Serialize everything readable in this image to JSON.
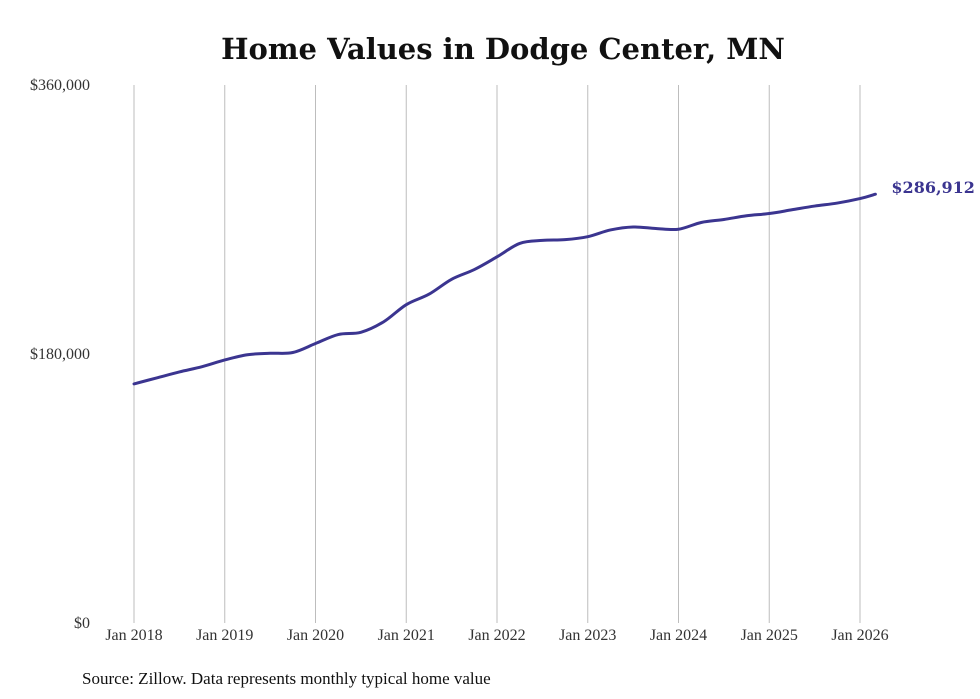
{
  "chart_data": {
    "type": "line",
    "title": "Home Values in Dodge Center, MN",
    "xlabel": "",
    "ylabel": "",
    "ylim": [
      0,
      360000
    ],
    "yticks": [
      {
        "value": 0,
        "label": "$0"
      },
      {
        "value": 180000,
        "label": "$180,000"
      },
      {
        "value": 360000,
        "label": "$360,000"
      }
    ],
    "xticks": [
      {
        "value": 2018.0,
        "label": "Jan 2018"
      },
      {
        "value": 2019.0,
        "label": "Jan 2019"
      },
      {
        "value": 2020.0,
        "label": "Jan 2020"
      },
      {
        "value": 2021.0,
        "label": "Jan 2021"
      },
      {
        "value": 2022.0,
        "label": "Jan 2022"
      },
      {
        "value": 2023.0,
        "label": "Jan 2023"
      },
      {
        "value": 2024.0,
        "label": "Jan 2024"
      },
      {
        "value": 2025.0,
        "label": "Jan 2025"
      },
      {
        "value": 2026.0,
        "label": "Jan 2026"
      }
    ],
    "xlim": [
      2018.0,
      2026.17
    ],
    "grid": "vertical",
    "series": [
      {
        "name": "Typical home value",
        "color": "#3b3590",
        "end_label": "$286,912",
        "x": [
          2018.0,
          2018.25,
          2018.5,
          2018.75,
          2019.0,
          2019.25,
          2019.5,
          2019.75,
          2020.0,
          2020.25,
          2020.5,
          2020.75,
          2021.0,
          2021.25,
          2021.5,
          2021.75,
          2022.0,
          2022.25,
          2022.5,
          2022.75,
          2023.0,
          2023.25,
          2023.5,
          2023.75,
          2024.0,
          2024.25,
          2024.5,
          2024.75,
          2025.0,
          2025.25,
          2025.5,
          2025.75,
          2026.0,
          2026.17
        ],
        "values": [
          160000,
          164000,
          168000,
          171500,
          176000,
          179500,
          180500,
          181000,
          187000,
          193000,
          194500,
          201500,
          213000,
          220000,
          230000,
          236500,
          245000,
          254000,
          256000,
          256500,
          258500,
          263000,
          265000,
          264000,
          263500,
          268000,
          270000,
          272500,
          274000,
          276500,
          279000,
          281000,
          284000,
          286912
        ]
      }
    ]
  },
  "source_note": "Source: Zillow. Data represents monthly typical home value"
}
